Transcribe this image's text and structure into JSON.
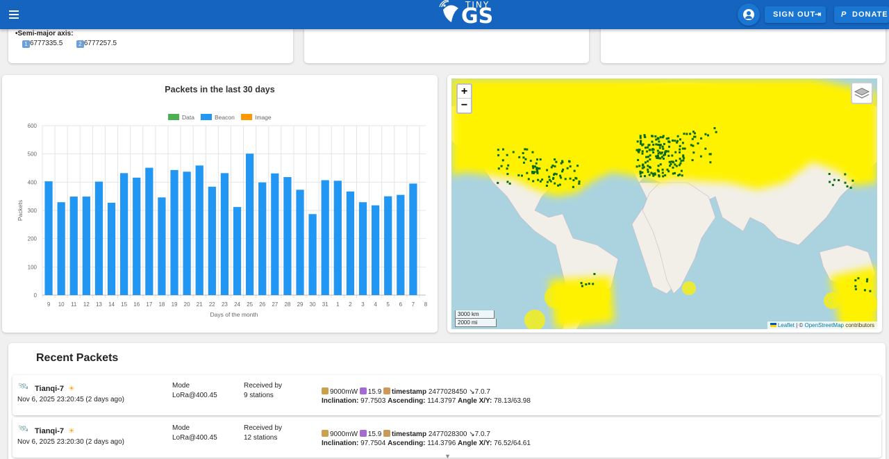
{
  "header": {
    "logo_small": "TINY",
    "logo_big": "GS",
    "signout_label": "SIGN OUT",
    "donate_label": "DONATE"
  },
  "orbit_card": {
    "semi_major_label": "•Semi-major axis:",
    "value_1_badge": "1",
    "value_1": "6777335.5",
    "value_2_badge": "2",
    "value_2": "6777257.5"
  },
  "chart_data": {
    "type": "bar",
    "title": "Packets in the last 30 days",
    "xlabel": "Days of the month",
    "ylabel": "Packets",
    "ylim": [
      0,
      600
    ],
    "yticks": [
      0,
      100,
      200,
      300,
      400,
      500,
      600
    ],
    "legend_position": "top",
    "categories": [
      "9",
      "10",
      "11",
      "12",
      "13",
      "14",
      "15",
      "16",
      "17",
      "18",
      "19",
      "20",
      "21",
      "22",
      "23",
      "24",
      "25",
      "26",
      "27",
      "28",
      "29",
      "30",
      "31",
      "1",
      "2",
      "3",
      "4",
      "5",
      "6",
      "7",
      "8"
    ],
    "series": [
      {
        "name": "Data",
        "color": "#4caf50",
        "values": [
          0,
          0,
          0,
          0,
          0,
          0,
          0,
          0,
          0,
          0,
          0,
          0,
          0,
          0,
          0,
          0,
          0,
          0,
          0,
          0,
          0,
          0,
          0,
          0,
          0,
          0,
          0,
          0,
          0,
          0,
          0
        ]
      },
      {
        "name": "Beacon",
        "color": "#2196f3",
        "values": [
          403,
          329,
          349,
          349,
          402,
          327,
          432,
          416,
          451,
          346,
          443,
          437,
          459,
          384,
          432,
          312,
          501,
          399,
          431,
          418,
          373,
          287,
          407,
          405,
          367,
          329,
          318,
          350,
          355,
          395,
          0
        ]
      },
      {
        "name": "Image",
        "color": "#ff9800",
        "values": [
          0,
          0,
          0,
          0,
          0,
          0,
          0,
          0,
          0,
          0,
          0,
          0,
          0,
          0,
          0,
          0,
          0,
          0,
          0,
          0,
          0,
          0,
          0,
          0,
          0,
          0,
          0,
          0,
          0,
          0,
          0
        ]
      }
    ]
  },
  "map": {
    "zoom_in": "+",
    "zoom_out": "−",
    "scale_km": "3000 km",
    "scale_mi": "2000 mi",
    "attrib_leaflet": "Leaflet",
    "attrib_sep": " | © ",
    "attrib_osm": "OpenStreetMap",
    "attrib_tail": " contributors",
    "coverage_color": "#fff200",
    "station_color": "#0b6b12"
  },
  "recent_packets": {
    "title": "Recent Packets",
    "items": [
      {
        "satellite": "Tianqi-7",
        "date": "Nov 6, 2025 23:20:45 (2 days ago)",
        "mode_label": "Mode",
        "mode": "LoRa@400.45",
        "rx_label": "Received by",
        "rx": "9 stations",
        "power": "9000mW",
        "id_val": "15.9",
        "ts_label": "timestamp",
        "ts_val": "2477028450",
        "ver": "7.0.7",
        "incl_label": "Inclination:",
        "incl": "97.7503",
        "asc_label": "Ascending:",
        "asc": "114.3797",
        "angle_label": "Angle X/Y:",
        "angle": "78.13/63.98"
      },
      {
        "satellite": "Tianqi-7",
        "date": "Nov 6, 2025 23:20:30 (2 days ago)",
        "mode_label": "Mode",
        "mode": "LoRa@400.45",
        "rx_label": "Received by",
        "rx": "12 stations",
        "power": "9000mW",
        "id_val": "15.9",
        "ts_label": "timestamp",
        "ts_val": "2477028300",
        "ver": "7.0.7",
        "incl_label": "Inclination:",
        "incl": "97.7504",
        "asc_label": "Ascending:",
        "asc": "114.3796",
        "angle_label": "Angle X/Y:",
        "angle": "76.52/64.61"
      }
    ]
  }
}
